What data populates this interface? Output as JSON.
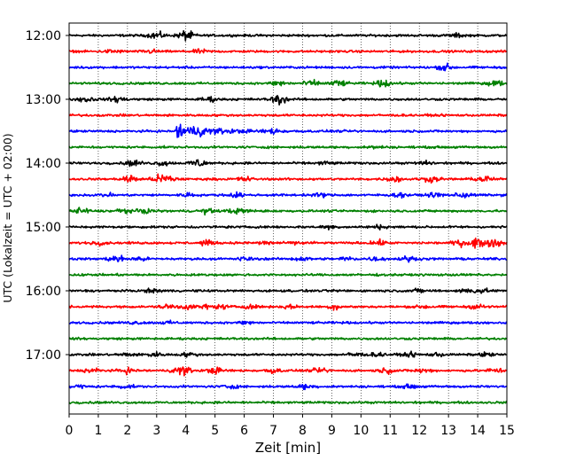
{
  "chart_data": {
    "type": "line",
    "title": "",
    "xlabel": "Zeit  [min]",
    "ylabel": "UTC (Lokalzeit = UTC + 02:00)",
    "xlim": [
      0,
      15
    ],
    "x_ticks": [
      "0",
      "1",
      "2",
      "3",
      "4",
      "5",
      "6",
      "7",
      "8",
      "9",
      "10",
      "11",
      "12",
      "13",
      "14",
      "15"
    ],
    "y_tick_labels": [
      "12:00",
      "13:00",
      "14:00",
      "15:00",
      "16:00",
      "17:00"
    ],
    "grid": "vertical-dotted",
    "line_minutes": 15,
    "color_cycle": [
      "#000000",
      "#ff0000",
      "#0000ff",
      "#008000"
    ],
    "traces": [
      {
        "start": "12:00",
        "color": "#000000",
        "bursts": [
          {
            "t": 3.0,
            "amp": 0.6
          },
          {
            "t": 4.0,
            "amp": 0.9
          },
          {
            "t": 13.3,
            "amp": 0.3
          }
        ]
      },
      {
        "start": "12:15",
        "color": "#ff0000",
        "bursts": [
          {
            "t": 1.5,
            "amp": 0.3
          },
          {
            "t": 2.8,
            "amp": 0.3
          },
          {
            "t": 4.5,
            "amp": 0.3
          }
        ]
      },
      {
        "start": "12:30",
        "color": "#0000ff",
        "bursts": [
          {
            "t": 12.9,
            "amp": 0.55
          }
        ]
      },
      {
        "start": "12:45",
        "color": "#008000",
        "bursts": [
          {
            "t": 7.2,
            "amp": 0.5
          },
          {
            "t": 8.3,
            "amp": 0.5
          },
          {
            "t": 9.2,
            "amp": 0.6
          },
          {
            "t": 10.8,
            "amp": 0.6
          },
          {
            "t": 14.6,
            "amp": 0.5
          }
        ]
      },
      {
        "start": "13:00",
        "color": "#000000",
        "bursts": [
          {
            "t": 0.6,
            "amp": 0.5
          },
          {
            "t": 1.7,
            "amp": 0.5
          },
          {
            "t": 4.8,
            "amp": 0.4
          },
          {
            "t": 7.2,
            "amp": 0.9
          }
        ]
      },
      {
        "start": "13:15",
        "color": "#ff0000",
        "bursts": []
      },
      {
        "start": "13:30",
        "color": "#0000ff",
        "event": {
          "t": 3.65,
          "amp": 1.7,
          "duration": 4.0
        },
        "bursts": [
          {
            "t": 7.0,
            "amp": 0.4
          }
        ]
      },
      {
        "start": "13:45",
        "color": "#008000",
        "bursts": [
          {
            "t": 10.5,
            "amp": 0.2
          }
        ]
      },
      {
        "start": "14:00",
        "color": "#000000",
        "bursts": [
          {
            "t": 2.2,
            "amp": 0.5
          },
          {
            "t": 3.2,
            "amp": 0.4
          },
          {
            "t": 4.4,
            "amp": 0.8
          },
          {
            "t": 8.8,
            "amp": 0.3
          },
          {
            "t": 12.2,
            "amp": 0.3
          }
        ]
      },
      {
        "start": "14:15",
        "color": "#ff0000",
        "bursts": [
          {
            "t": 2.1,
            "amp": 0.7
          },
          {
            "t": 3.1,
            "amp": 0.6
          },
          {
            "t": 3.4,
            "amp": 0.6
          },
          {
            "t": 6.0,
            "amp": 0.4
          },
          {
            "t": 11.2,
            "amp": 0.5
          },
          {
            "t": 12.4,
            "amp": 0.5
          },
          {
            "t": 14.2,
            "amp": 0.6
          }
        ]
      },
      {
        "start": "14:30",
        "color": "#0000ff",
        "bursts": [
          {
            "t": 1.3,
            "amp": 0.3
          },
          {
            "t": 4.1,
            "amp": 0.3
          },
          {
            "t": 5.7,
            "amp": 0.4
          },
          {
            "t": 8.6,
            "amp": 0.3
          },
          {
            "t": 11.3,
            "amp": 0.3
          },
          {
            "t": 12.6,
            "amp": 0.4
          },
          {
            "t": 13.5,
            "amp": 0.5
          }
        ]
      },
      {
        "start": "14:45",
        "color": "#008000",
        "bursts": [
          {
            "t": 0.4,
            "amp": 0.6
          },
          {
            "t": 1.8,
            "amp": 0.4
          },
          {
            "t": 2.6,
            "amp": 0.4
          },
          {
            "t": 4.7,
            "amp": 0.4
          },
          {
            "t": 5.6,
            "amp": 0.3
          },
          {
            "t": 6.0,
            "amp": 0.3
          }
        ]
      },
      {
        "start": "15:00",
        "color": "#000000",
        "bursts": [
          {
            "t": 8.9,
            "amp": 0.3
          },
          {
            "t": 10.6,
            "amp": 0.3
          }
        ]
      },
      {
        "start": "15:15",
        "color": "#ff0000",
        "bursts": [
          {
            "t": 1.0,
            "amp": 0.3
          },
          {
            "t": 4.7,
            "amp": 0.4
          },
          {
            "t": 6.7,
            "amp": 0.4
          },
          {
            "t": 8.0,
            "amp": 0.3
          },
          {
            "t": 10.6,
            "amp": 0.4
          },
          {
            "t": 13.4,
            "amp": 0.5
          },
          {
            "t": 14.0,
            "amp": 0.9
          },
          {
            "t": 14.6,
            "amp": 0.7
          }
        ]
      },
      {
        "start": "15:30",
        "color": "#0000ff",
        "bursts": [
          {
            "t": 1.6,
            "amp": 0.6
          },
          {
            "t": 2.4,
            "amp": 0.4
          },
          {
            "t": 6.0,
            "amp": 0.3
          },
          {
            "t": 8.0,
            "amp": 0.3
          },
          {
            "t": 9.5,
            "amp": 0.4
          },
          {
            "t": 10.5,
            "amp": 0.3
          },
          {
            "t": 11.6,
            "amp": 0.4
          }
        ]
      },
      {
        "start": "15:45",
        "color": "#008000",
        "bursts": []
      },
      {
        "start": "16:00",
        "color": "#000000",
        "bursts": [
          {
            "t": 2.9,
            "amp": 0.3
          },
          {
            "t": 12.0,
            "amp": 0.3
          },
          {
            "t": 13.6,
            "amp": 0.3
          },
          {
            "t": 14.1,
            "amp": 0.4
          }
        ]
      },
      {
        "start": "16:15",
        "color": "#ff0000",
        "bursts": [
          {
            "t": 3.4,
            "amp": 0.4
          },
          {
            "t": 4.0,
            "amp": 0.4
          },
          {
            "t": 4.7,
            "amp": 0.3
          },
          {
            "t": 5.2,
            "amp": 0.3
          },
          {
            "t": 6.2,
            "amp": 0.3
          },
          {
            "t": 7.5,
            "amp": 0.3
          },
          {
            "t": 9.1,
            "amp": 0.4
          },
          {
            "t": 12.2,
            "amp": 0.3
          },
          {
            "t": 14.0,
            "amp": 0.4
          }
        ]
      },
      {
        "start": "16:30",
        "color": "#0000ff",
        "bursts": [
          {
            "t": 2.3,
            "amp": 0.2
          },
          {
            "t": 3.4,
            "amp": 0.2
          },
          {
            "t": 6.1,
            "amp": 0.3
          }
        ]
      },
      {
        "start": "16:45",
        "color": "#008000",
        "bursts": []
      },
      {
        "start": "17:00",
        "color": "#000000",
        "bursts": [
          {
            "t": 2.0,
            "amp": 0.3
          },
          {
            "t": 2.9,
            "amp": 0.4
          },
          {
            "t": 4.1,
            "amp": 0.3
          },
          {
            "t": 9.8,
            "amp": 0.4
          },
          {
            "t": 10.6,
            "amp": 0.3
          },
          {
            "t": 11.7,
            "amp": 0.3
          },
          {
            "t": 12.6,
            "amp": 0.3
          },
          {
            "t": 14.3,
            "amp": 0.3
          }
        ]
      },
      {
        "start": "17:15",
        "color": "#ff0000",
        "bursts": [
          {
            "t": 0.8,
            "amp": 0.4
          },
          {
            "t": 2.0,
            "amp": 0.4
          },
          {
            "t": 3.8,
            "amp": 0.4
          },
          {
            "t": 3.9,
            "amp": 0.6
          },
          {
            "t": 5.0,
            "amp": 0.5
          },
          {
            "t": 7.0,
            "amp": 0.4
          },
          {
            "t": 8.6,
            "amp": 0.4
          },
          {
            "t": 10.9,
            "amp": 0.4
          },
          {
            "t": 12.1,
            "amp": 0.4
          },
          {
            "t": 14.6,
            "amp": 0.4
          }
        ]
      },
      {
        "start": "17:30",
        "color": "#0000ff",
        "bursts": [
          {
            "t": 0.3,
            "amp": 0.3
          },
          {
            "t": 1.9,
            "amp": 0.3
          },
          {
            "t": 5.5,
            "amp": 0.3
          },
          {
            "t": 8.1,
            "amp": 0.4
          },
          {
            "t": 11.7,
            "amp": 0.3
          }
        ]
      },
      {
        "start": "17:45",
        "color": "#008000",
        "bursts": []
      }
    ]
  }
}
